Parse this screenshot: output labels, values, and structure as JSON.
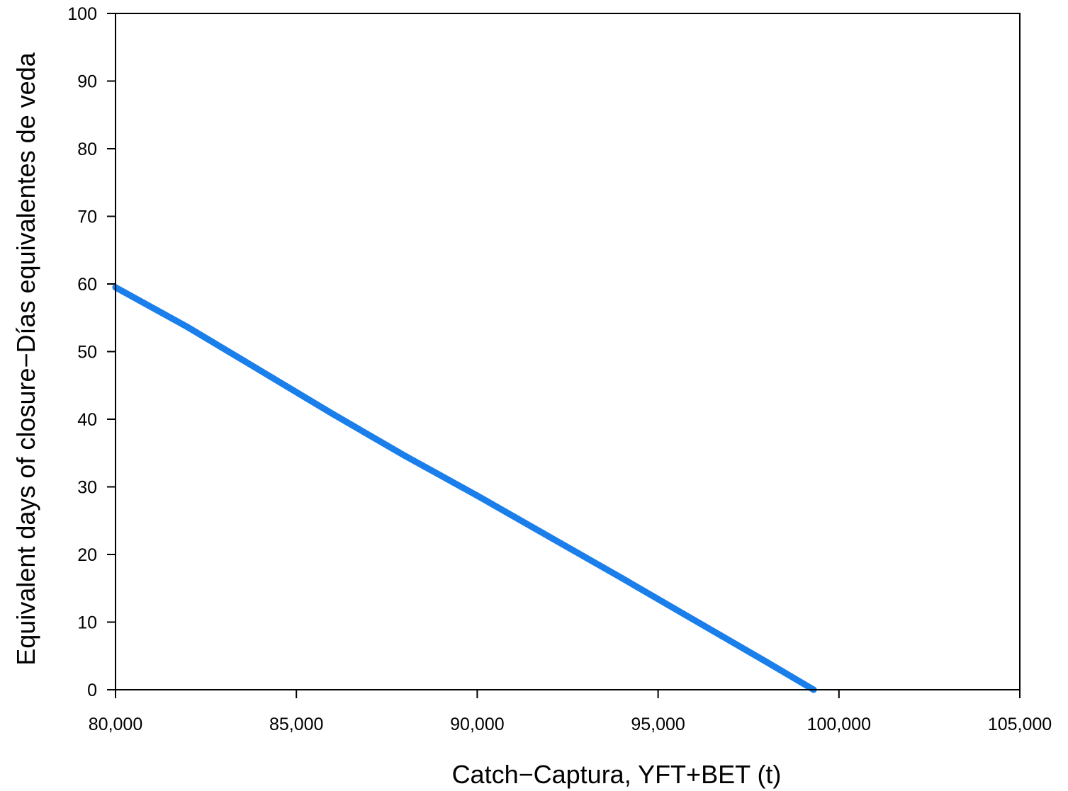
{
  "chart_data": {
    "type": "line",
    "title": "",
    "xlabel": "Catch−Captura, YFT+BET (t)",
    "ylabel": "Equivalent days of closure−Días equivalentes de veda",
    "xlim": [
      80000,
      105000
    ],
    "ylim": [
      0,
      100
    ],
    "xticks": [
      80000,
      85000,
      90000,
      95000,
      100000,
      105000
    ],
    "xtick_labels": [
      "80,000",
      "85,000",
      "90,000",
      "95,000",
      "100,000",
      "105,000"
    ],
    "yticks": [
      0,
      10,
      20,
      30,
      40,
      50,
      60,
      70,
      80,
      90,
      100
    ],
    "ytick_labels": [
      "0",
      "10",
      "20",
      "30",
      "40",
      "50",
      "60",
      "70",
      "80",
      "90",
      "100"
    ],
    "grid": false,
    "series": [
      {
        "color": "#1a7fea",
        "x": [
          80000,
          82000,
          84000,
          86000,
          88000,
          90000,
          92000,
          94000,
          96000,
          98000,
          99300
        ],
        "y": [
          59.5,
          53.6,
          47.2,
          40.8,
          34.6,
          28.7,
          22.6,
          16.5,
          10.3,
          4.1,
          0
        ]
      }
    ]
  }
}
